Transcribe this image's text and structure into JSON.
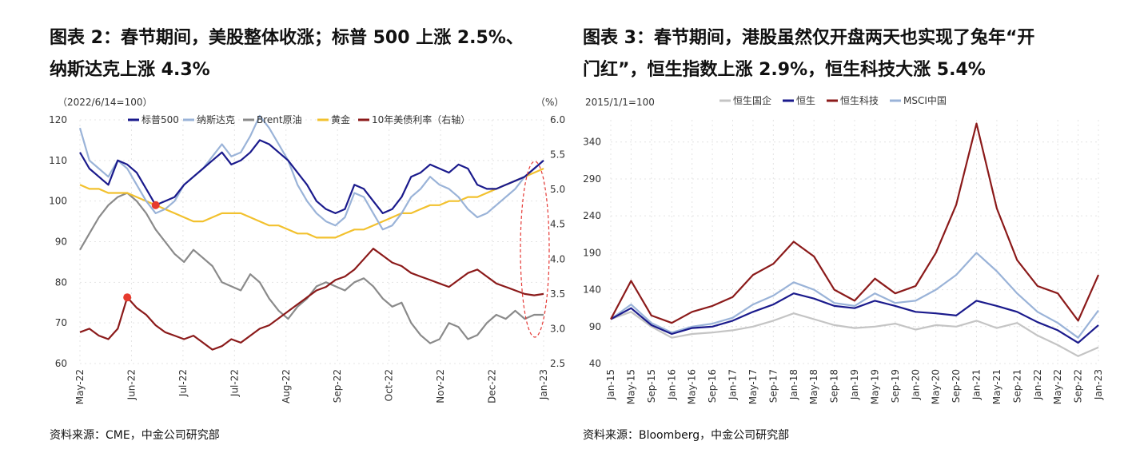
{
  "left": {
    "title_line1": "图表 2：春节期间，美股整体收涨；标普 500 上涨 2.5%、",
    "title_line2": "纳斯达克上涨 4.3%",
    "source": "资料来源：CME，中金公司研究部",
    "chart_data": {
      "type": "line",
      "title": "",
      "index_note": "（2022/6/14=100）",
      "right_unit": "（%）",
      "x_ticks": [
        "May-22",
        "Jun-22",
        "Jul-22",
        "Jul-22",
        "Aug-22",
        "Sep-22",
        "Oct-22",
        "Nov-22",
        "Dec-22",
        "Jan-23"
      ],
      "ylim": [
        60,
        120
      ],
      "yticks": [
        60,
        70,
        80,
        90,
        100,
        110,
        120
      ],
      "y2lim": [
        2.5,
        6.0
      ],
      "y2ticks": [
        "2.5",
        "3.0",
        "3.5",
        "4.0",
        "4.5",
        "5.0",
        "5.5",
        "6.0"
      ],
      "legend_position": "top",
      "series": [
        {
          "name": "标普500",
          "color": "#1a1a8c",
          "axis": "left",
          "values": [
            112,
            108,
            106,
            104,
            110,
            109,
            107,
            103,
            99,
            100,
            101,
            104,
            106,
            108,
            110,
            112,
            109,
            110,
            112,
            115,
            114,
            112,
            110,
            107,
            104,
            100,
            98,
            97,
            98,
            104,
            103,
            100,
            97,
            98,
            101,
            106,
            107,
            109,
            108,
            107,
            109,
            108,
            104,
            103,
            103,
            104,
            105,
            106,
            108,
            110
          ]
        },
        {
          "name": "纳斯达克",
          "color": "#9ab3d8",
          "axis": "left",
          "values": [
            118,
            110,
            108,
            106,
            110,
            108,
            104,
            100,
            97,
            98,
            100,
            104,
            106,
            108,
            111,
            114,
            111,
            112,
            116,
            121,
            118,
            114,
            110,
            104,
            100,
            97,
            95,
            94,
            96,
            102,
            101,
            97,
            93,
            94,
            97,
            101,
            103,
            106,
            104,
            103,
            101,
            98,
            96,
            97,
            99,
            101,
            103,
            106,
            108,
            110
          ]
        },
        {
          "name": "Brent原油",
          "color": "#8a8a8a",
          "axis": "left",
          "values": [
            88,
            92,
            96,
            99,
            101,
            102,
            100,
            97,
            93,
            90,
            87,
            85,
            88,
            86,
            84,
            80,
            79,
            78,
            82,
            80,
            76,
            73,
            71,
            74,
            76,
            79,
            80,
            79,
            78,
            80,
            81,
            79,
            76,
            74,
            75,
            70,
            67,
            65,
            66,
            70,
            69,
            66,
            67,
            70,
            72,
            71,
            73,
            71,
            72,
            72
          ]
        },
        {
          "name": "黄金",
          "color": "#f2c12e",
          "axis": "left",
          "values": [
            104,
            103,
            103,
            102,
            102,
            102,
            101,
            100,
            99,
            98,
            97,
            96,
            95,
            95,
            96,
            97,
            97,
            97,
            96,
            95,
            94,
            94,
            93,
            92,
            92,
            91,
            91,
            91,
            92,
            93,
            93,
            94,
            95,
            96,
            97,
            97,
            98,
            99,
            99,
            100,
            100,
            101,
            101,
            102,
            103,
            104,
            105,
            106,
            107,
            108
          ]
        },
        {
          "name": "10年美债利率（右轴）",
          "color": "#8b1a1a",
          "axis": "right",
          "values": [
            2.95,
            3.0,
            2.9,
            2.85,
            3.0,
            3.45,
            3.3,
            3.2,
            3.05,
            2.95,
            2.9,
            2.85,
            2.9,
            2.8,
            2.7,
            2.75,
            2.85,
            2.8,
            2.9,
            3.0,
            3.05,
            3.15,
            3.25,
            3.35,
            3.45,
            3.55,
            3.6,
            3.7,
            3.75,
            3.85,
            4.0,
            4.15,
            4.05,
            3.95,
            3.9,
            3.8,
            3.75,
            3.7,
            3.65,
            3.6,
            3.7,
            3.8,
            3.85,
            3.75,
            3.65,
            3.6,
            3.55,
            3.5,
            3.48,
            3.5
          ]
        }
      ],
      "markers": [
        {
          "series": "黄金",
          "index": 8
        },
        {
          "series": "10年美债利率（右轴）",
          "index": 5
        }
      ]
    }
  },
  "right": {
    "title_line1": "图表 3：春节期间，港股虽然仅开盘两天也实现了兔年“开",
    "title_line2": "门红”，恒生指数上涨 2.9%，恒生科技大涨 5.4%",
    "source": "资料来源：Bloomberg，中金公司研究部",
    "chart_data": {
      "type": "line",
      "title": "",
      "index_note": "2015/1/1=100",
      "x_ticks": [
        "Jan-15",
        "May-15",
        "Sep-15",
        "Jan-16",
        "May-16",
        "Sep-16",
        "Jan-17",
        "May-17",
        "Sep-17",
        "Jan-18",
        "May-18",
        "Sep-18",
        "Jan-19",
        "May-19",
        "Sep-19",
        "Jan-20",
        "May-20",
        "Sep-20",
        "Jan-21",
        "May-21",
        "Sep-21",
        "Jan-22",
        "May-22",
        "Sep-22",
        "Jan-23"
      ],
      "ylim": [
        40,
        370
      ],
      "yticks": [
        40,
        90,
        140,
        190,
        240,
        290,
        340
      ],
      "legend_position": "top",
      "series": [
        {
          "name": "恒生国企",
          "color": "#c4c4c4",
          "values": [
            100,
            110,
            90,
            75,
            80,
            82,
            85,
            90,
            98,
            108,
            100,
            92,
            88,
            90,
            94,
            86,
            92,
            90,
            98,
            88,
            95,
            78,
            65,
            50,
            62
          ]
        },
        {
          "name": "恒生",
          "color": "#1a1a8c",
          "values": [
            100,
            115,
            92,
            80,
            88,
            90,
            98,
            110,
            120,
            135,
            128,
            118,
            115,
            125,
            118,
            110,
            108,
            105,
            125,
            118,
            110,
            96,
            85,
            68,
            92
          ]
        },
        {
          "name": "恒生科技",
          "color": "#8b1a1a",
          "values": [
            100,
            152,
            105,
            95,
            110,
            118,
            130,
            160,
            175,
            205,
            185,
            140,
            125,
            155,
            135,
            145,
            190,
            255,
            365,
            250,
            180,
            145,
            135,
            98,
            160
          ]
        },
        {
          "name": "MSCI中国",
          "color": "#9ab3d8",
          "values": [
            100,
            120,
            95,
            82,
            90,
            94,
            102,
            120,
            132,
            150,
            140,
            122,
            118,
            135,
            122,
            125,
            140,
            160,
            190,
            165,
            135,
            110,
            95,
            75,
            112
          ]
        }
      ]
    }
  }
}
